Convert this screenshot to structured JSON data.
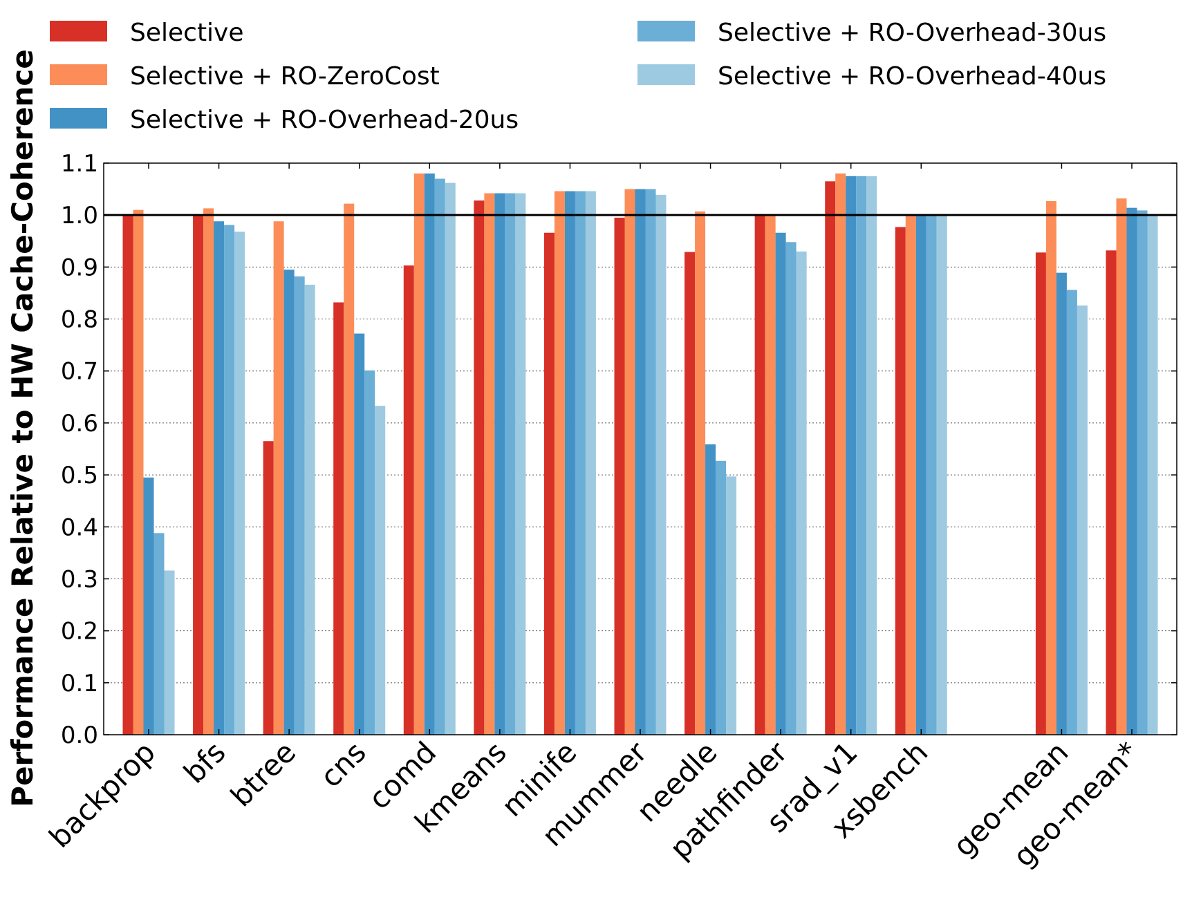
{
  "chart_data": {
    "type": "bar",
    "title": "",
    "xlabel": "",
    "ylabel": "Performance Relative to HW Cache-Coherence",
    "ylim": [
      0.0,
      1.1
    ],
    "yticks": [
      "0.0",
      "0.1",
      "0.2",
      "0.3",
      "0.4",
      "0.5",
      "0.6",
      "0.7",
      "0.8",
      "0.9",
      "1.0",
      "1.1"
    ],
    "grid": "horizontal dotted",
    "reference_line": 1.0,
    "legend_position": "top, above plot, two columns",
    "categories": [
      "backprop",
      "bfs",
      "btree",
      "cns",
      "comd",
      "kmeans",
      "minife",
      "mummer",
      "needle",
      "pathfinder",
      "srad_v1",
      "xsbench",
      "geo-mean",
      "geo-mean*"
    ],
    "category_gap_before": [
      false,
      false,
      false,
      false,
      false,
      false,
      false,
      false,
      false,
      false,
      false,
      false,
      true,
      false
    ],
    "series": [
      {
        "name": "Selective",
        "color": "#d73027",
        "values": [
          1.0,
          1.0,
          0.565,
          0.832,
          0.903,
          1.028,
          0.966,
          0.995,
          0.929,
          1.0,
          1.065,
          0.977,
          0.928,
          0.932
        ]
      },
      {
        "name": "Selective + RO-ZeroCost",
        "color": "#fc8d59",
        "values": [
          1.01,
          1.013,
          0.988,
          1.022,
          1.08,
          1.042,
          1.046,
          1.05,
          1.007,
          1.0,
          1.08,
          1.0,
          1.027,
          1.032
        ]
      },
      {
        "name": "Selective + RO-Overhead-20us",
        "color": "#4292c6",
        "values": [
          0.495,
          0.988,
          0.895,
          0.772,
          1.08,
          1.042,
          1.046,
          1.05,
          0.559,
          0.966,
          1.075,
          1.0,
          0.889,
          1.014
        ]
      },
      {
        "name": "Selective + RO-Overhead-30us",
        "color": "#6baed6",
        "values": [
          0.388,
          0.981,
          0.882,
          0.701,
          1.07,
          1.042,
          1.046,
          1.05,
          0.527,
          0.948,
          1.075,
          1.0,
          0.856,
          1.009
        ]
      },
      {
        "name": "Selective + RO-Overhead-40us",
        "color": "#9ecae1",
        "values": [
          0.316,
          0.968,
          0.866,
          0.633,
          1.062,
          1.042,
          1.046,
          1.039,
          0.497,
          0.93,
          1.075,
          1.0,
          0.826,
          1.0
        ]
      }
    ]
  }
}
